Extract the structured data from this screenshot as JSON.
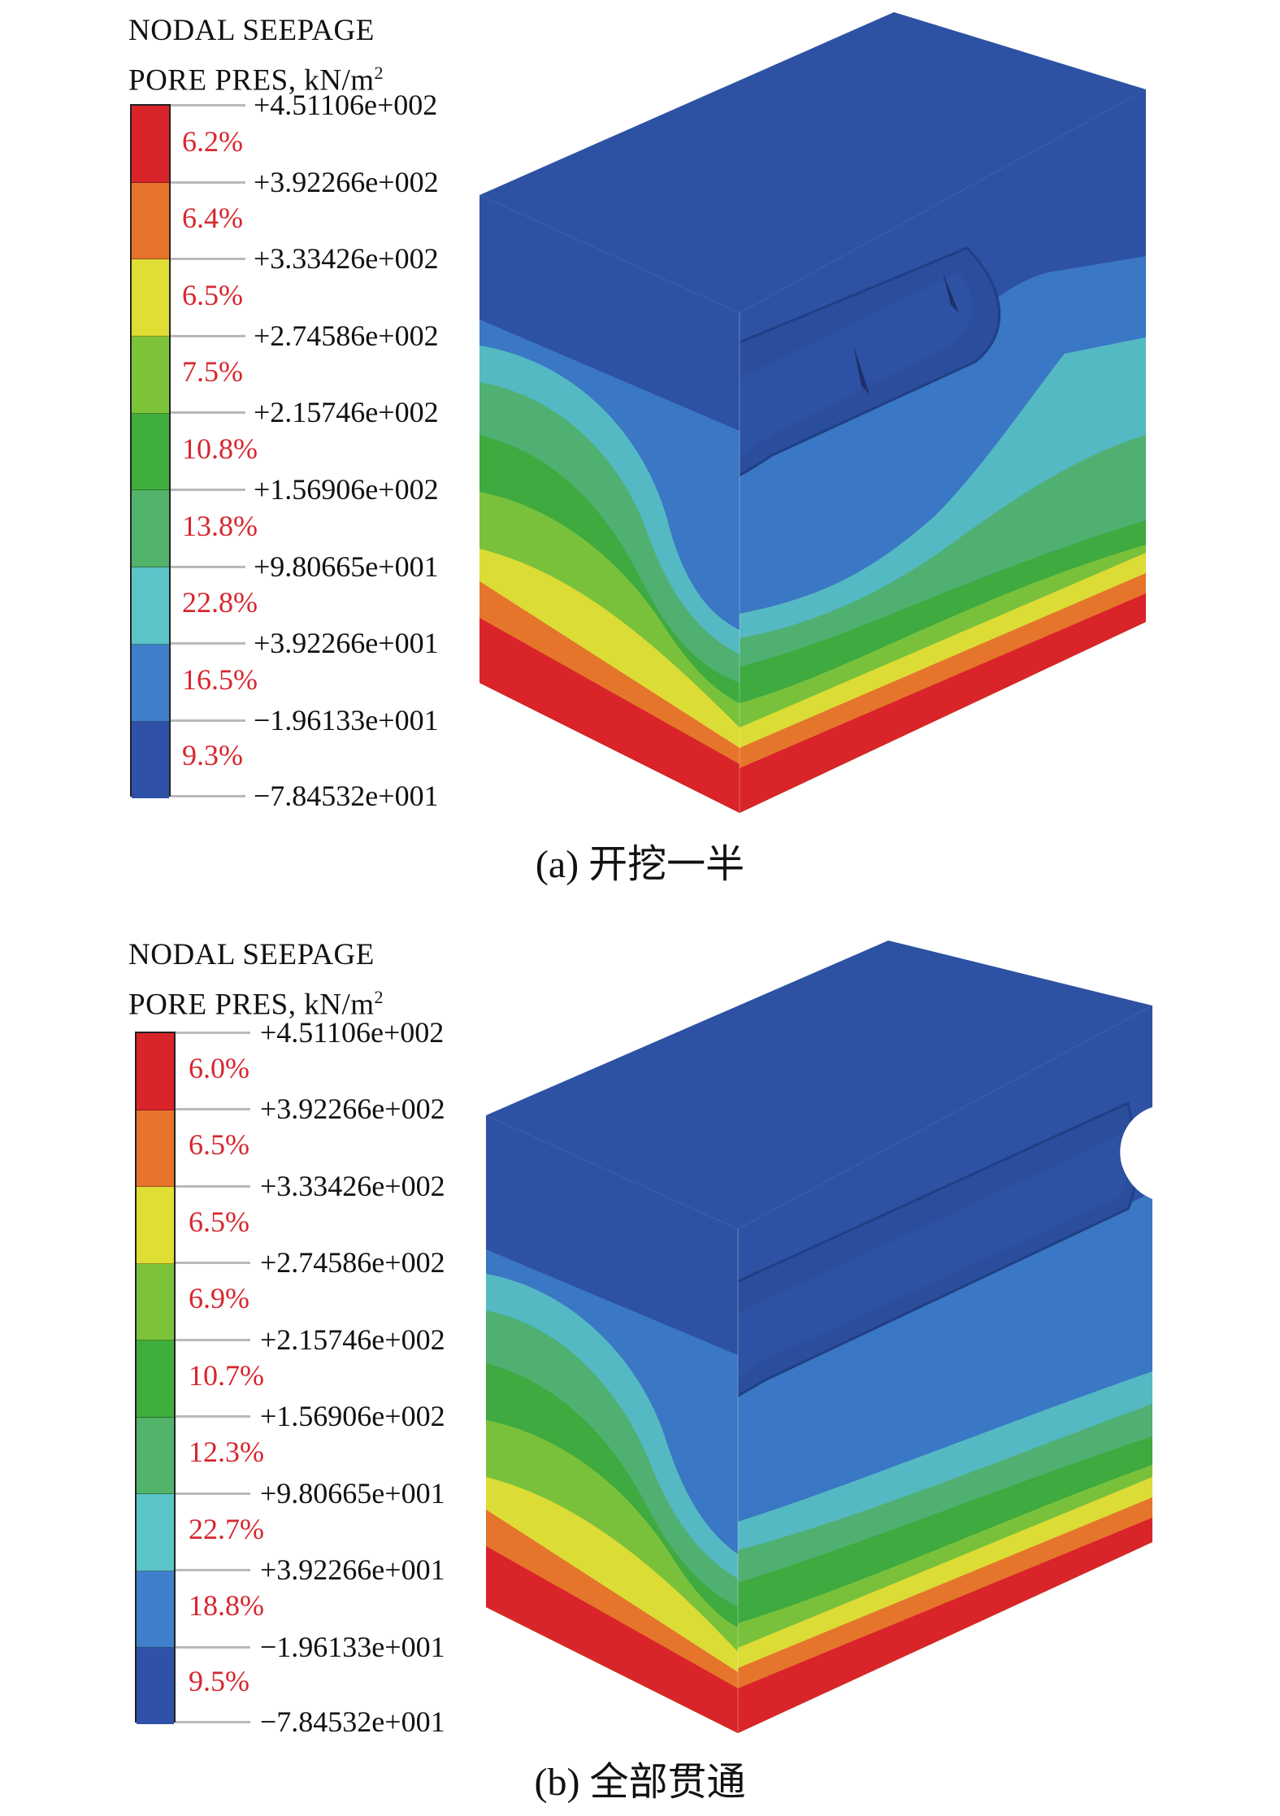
{
  "panels": [
    {
      "id": "a",
      "title_line1": "NODAL SEEPAGE",
      "title_line2": "PORE PRES, kN/m",
      "title_sup": "2",
      "ticks": [
        "+4.51106e+002",
        "+3.92266e+002",
        "+3.33426e+002",
        "+2.74586e+002",
        "+2.15746e+002",
        "+1.56906e+002",
        "+9.80665e+001",
        "+3.92266e+001",
        "−1.96133e+001",
        "−7.84532e+001"
      ],
      "percents": [
        "6.2%",
        "6.4%",
        "6.5%",
        "7.5%",
        "10.8%",
        "13.8%",
        "22.8%",
        "16.5%",
        "9.3%"
      ],
      "caption": "(a) 开挖一半"
    },
    {
      "id": "b",
      "title_line1": "NODAL SEEPAGE",
      "title_line2": "PORE PRES, kN/m",
      "title_sup": "2",
      "ticks": [
        "+4.51106e+002",
        "+3.92266e+002",
        "+3.33426e+002",
        "+2.74586e+002",
        "+2.15746e+002",
        "+1.56906e+002",
        "+9.80665e+001",
        "+3.92266e+001",
        "−1.96133e+001",
        "−7.84532e+001"
      ],
      "percents": [
        "6.0%",
        "6.5%",
        "6.5%",
        "6.9%",
        "10.7%",
        "12.3%",
        "22.7%",
        "18.8%",
        "9.5%"
      ],
      "caption": "(b) 全部贯通"
    }
  ],
  "colors": {
    "band_top_to_bottom": [
      "#d9242a",
      "#e8732a",
      "#dede34",
      "#7cc33a",
      "#3fae3c",
      "#52b36b",
      "#5bc4c8",
      "#3f7fcb",
      "#2f52a8"
    ],
    "text_red": "#d7272f",
    "tick_gray": "#b9b9b9"
  }
}
